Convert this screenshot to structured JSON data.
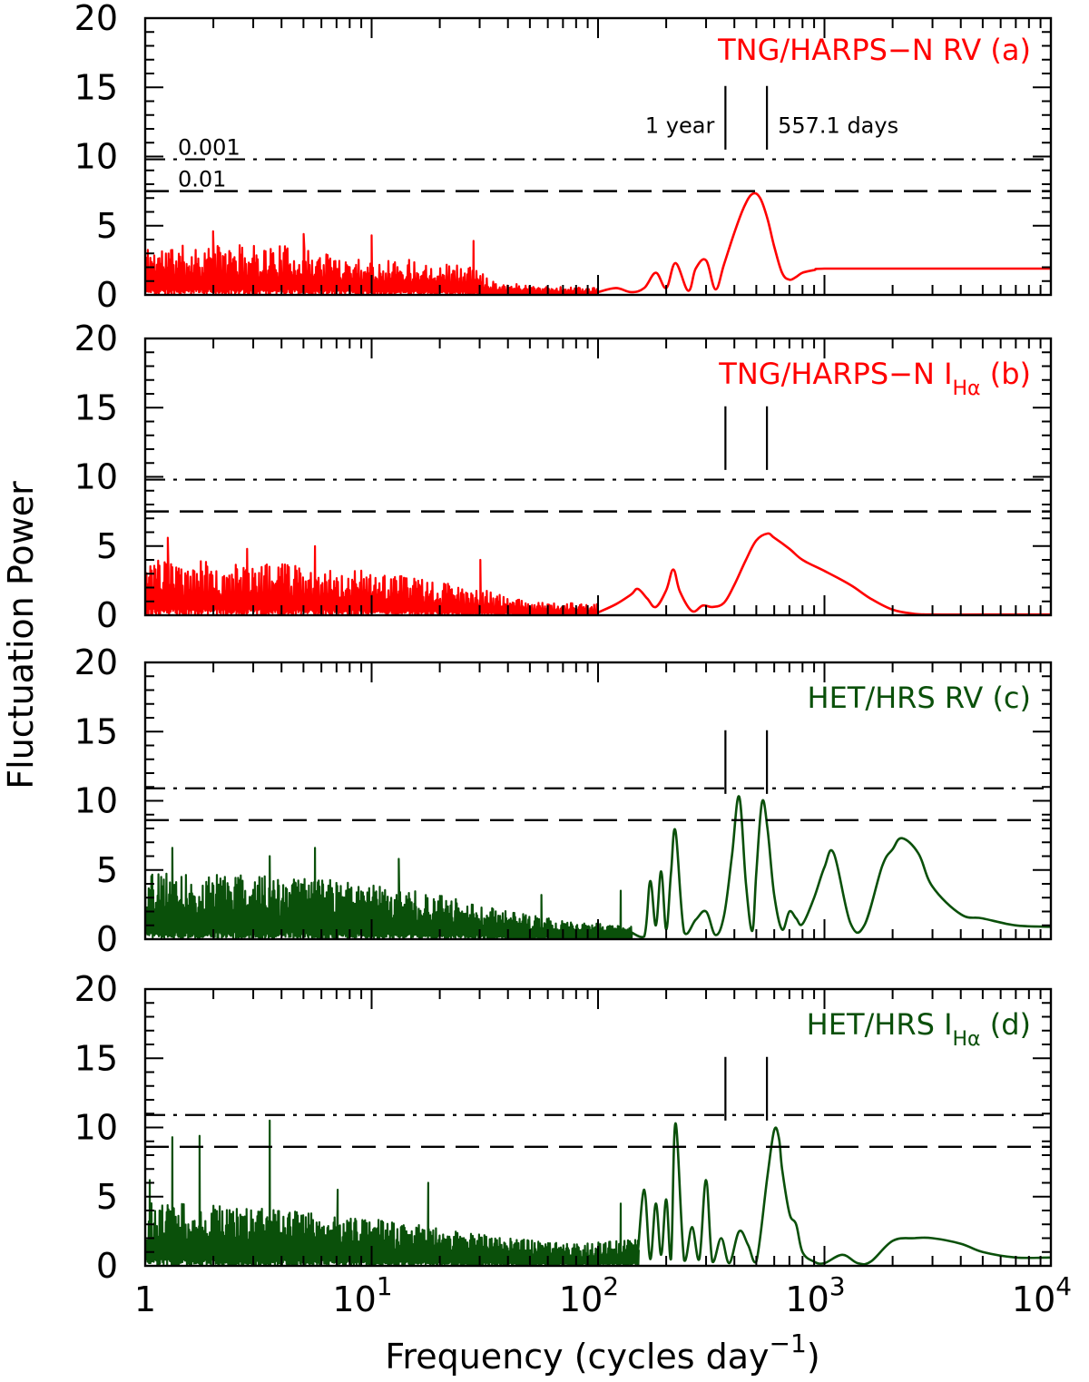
{
  "chart_data": {
    "type": "line",
    "xscale": "log",
    "xlim": [
      1,
      10000
    ],
    "xlabel": "Frequency (cycles day",
    "xlabel_sup": "−1",
    "xlabel_close": ")",
    "ylabel": "Fluctuation Power",
    "x_tick_labels": [
      "1",
      "10",
      "10",
      "10",
      "10"
    ],
    "x_tick_sups": [
      "",
      "1",
      "2",
      "3",
      "4"
    ],
    "x_ticks": [
      1,
      10,
      100,
      1000,
      10000
    ],
    "y_ticks": [
      0,
      5,
      10,
      15,
      20
    ],
    "markers": {
      "one_year": {
        "label": "1 year",
        "x": 365.25
      },
      "period": {
        "label": "557.1 days",
        "x": 557.1
      }
    },
    "fap_labels": {
      "dashdot": "0.001",
      "dashed": "0.01"
    },
    "panels": [
      {
        "id": "a",
        "label": "TNG/HARPS−N RV (a)",
        "label_main": "TNG/HARPS−N RV",
        "label_sub": "",
        "label_tag": "(a)",
        "color": "#ff0000",
        "ylim": [
          0,
          20
        ],
        "fap_001": 9.8,
        "fap_01": 7.5,
        "line_x": [
          100,
          120,
          140,
          160,
          180,
          200,
          220,
          250,
          270,
          300,
          330,
          360,
          400,
          440,
          480,
          520,
          560,
          600,
          650,
          700,
          750,
          800,
          900,
          1000,
          2000,
          5000,
          10000
        ],
        "line_y": [
          0.2,
          0.5,
          0.2,
          0.5,
          1.6,
          0.5,
          2.3,
          0.3,
          1.9,
          2.5,
          0.4,
          2.2,
          4.5,
          6.3,
          7.3,
          7.0,
          5.5,
          3.5,
          1.6,
          1.1,
          1.3,
          1.6,
          1.8,
          1.9,
          1.9,
          1.9,
          1.9
        ],
        "noise": {
          "seed": 11,
          "start": 0.0,
          "end": 2.0,
          "n": 700,
          "env": [
            [
              0.0,
              3.6
            ],
            [
              0.6,
              3.6
            ],
            [
              1.0,
              2.6
            ],
            [
              1.2,
              2.6
            ],
            [
              1.45,
              2.0
            ],
            [
              1.55,
              0.9
            ],
            [
              1.8,
              0.6
            ],
            [
              2.0,
              0.5
            ]
          ],
          "spikes": [
            [
              0.3,
              4.6
            ],
            [
              0.7,
              4.4
            ],
            [
              1.0,
              4.3
            ],
            [
              1.45,
              3.9
            ]
          ]
        }
      },
      {
        "id": "b",
        "label": "TNG/HARPS−N IHα (b)",
        "label_main": "TNG/HARPS−N I",
        "label_sub": "Hα",
        "label_tag": "(b)",
        "color": "#ff0000",
        "ylim": [
          0,
          20
        ],
        "fap_001": 9.8,
        "fap_01": 7.5,
        "line_x": [
          100,
          120,
          140,
          150,
          165,
          180,
          200,
          215,
          230,
          260,
          290,
          320,
          360,
          400,
          450,
          500,
          560,
          600,
          700,
          800,
          1000,
          1300,
          1600,
          2000,
          2500,
          3000,
          5000,
          10000
        ],
        "line_y": [
          0.2,
          0.8,
          1.5,
          1.9,
          1.2,
          0.6,
          1.8,
          3.3,
          1.7,
          0.3,
          0.7,
          0.6,
          0.9,
          2.2,
          4.0,
          5.4,
          5.9,
          5.6,
          4.8,
          4.0,
          3.2,
          2.2,
          1.2,
          0.4,
          0.1,
          0.05,
          0.05,
          0.05
        ],
        "noise": {
          "seed": 23,
          "start": 0.0,
          "end": 2.0,
          "n": 700,
          "env": [
            [
              0.0,
              4.0
            ],
            [
              0.6,
              3.8
            ],
            [
              1.0,
              3.2
            ],
            [
              1.3,
              2.4
            ],
            [
              1.5,
              1.8
            ],
            [
              1.7,
              1.0
            ],
            [
              2.0,
              0.8
            ]
          ],
          "spikes": [
            [
              0.1,
              5.6
            ],
            [
              0.45,
              4.8
            ],
            [
              0.75,
              5.0
            ],
            [
              1.48,
              4.0
            ]
          ]
        }
      },
      {
        "id": "c",
        "label": "HET/HRS RV (c)",
        "label_main": "HET/HRS RV",
        "label_sub": "",
        "label_tag": "(c)",
        "color": "#0a500a",
        "ylim": [
          0,
          20
        ],
        "fap_001": 10.9,
        "fap_01": 8.6,
        "line_x": [
          140,
          160,
          170,
          180,
          190,
          200,
          210,
          220,
          240,
          270,
          300,
          330,
          360,
          390,
          420,
          450,
          480,
          500,
          530,
          560,
          600,
          650,
          700,
          750,
          800,
          900,
          1000,
          1100,
          1300,
          1500,
          1800,
          2000,
          2200,
          2600,
          3000,
          4000,
          5000,
          7000,
          10000
        ],
        "line_y": [
          0.5,
          0.2,
          4.2,
          1.0,
          4.9,
          0.7,
          4.8,
          7.8,
          0.5,
          1.4,
          2.0,
          0.3,
          1.7,
          6.0,
          10.3,
          4.0,
          0.6,
          4.8,
          9.9,
          8.0,
          3.2,
          0.7,
          2.0,
          1.5,
          1.1,
          3.0,
          5.2,
          6.2,
          1.2,
          1.0,
          5.3,
          6.5,
          7.3,
          6.2,
          3.8,
          1.8,
          1.5,
          1.0,
          0.9
        ],
        "noise": {
          "seed": 37,
          "start": 0.0,
          "end": 2.15,
          "n": 1100,
          "env": [
            [
              0.0,
              4.8
            ],
            [
              0.5,
              4.6
            ],
            [
              0.9,
              4.2
            ],
            [
              1.3,
              3.2
            ],
            [
              1.6,
              2.0
            ],
            [
              1.9,
              1.2
            ],
            [
              2.15,
              1.0
            ]
          ],
          "spikes": [
            [
              0.12,
              6.6
            ],
            [
              0.55,
              6.0
            ],
            [
              0.75,
              6.6
            ],
            [
              1.12,
              5.8
            ],
            [
              1.75,
              3.2
            ],
            [
              2.1,
              3.5
            ]
          ]
        }
      },
      {
        "id": "d",
        "label": "HET/HRS IHα (d)",
        "label_main": "HET/HRS I",
        "label_sub": "Hα",
        "label_tag": "(d)",
        "color": "#0a500a",
        "ylim": [
          0,
          20
        ],
        "fap_001": 10.9,
        "fap_01": 8.6,
        "line_x": [
          150,
          160,
          170,
          180,
          190,
          200,
          210,
          220,
          240,
          260,
          280,
          300,
          320,
          350,
          380,
          420,
          460,
          500,
          560,
          600,
          630,
          650,
          700,
          750,
          800,
          900,
          1000,
          1200,
          1400,
          1600,
          2000,
          2500,
          3000,
          4000,
          5000,
          7000,
          10000
        ],
        "line_y": [
          1.0,
          5.5,
          0.5,
          4.5,
          0.8,
          4.8,
          0.5,
          10.3,
          0.4,
          2.8,
          0.5,
          6.2,
          0.3,
          2.0,
          0.2,
          2.5,
          1.5,
          0.3,
          6.5,
          9.8,
          9.2,
          7.0,
          3.8,
          3.0,
          1.0,
          0.3,
          0.2,
          0.8,
          0.2,
          0.3,
          1.8,
          2.0,
          2.0,
          1.6,
          1.0,
          0.6,
          0.6
        ],
        "noise": {
          "seed": 53,
          "start": 0.0,
          "end": 2.18,
          "n": 1100,
          "env": [
            [
              0.0,
              4.6
            ],
            [
              0.5,
              4.2
            ],
            [
              0.9,
              3.6
            ],
            [
              1.3,
              2.8
            ],
            [
              1.6,
              2.0
            ],
            [
              1.9,
              1.6
            ],
            [
              2.18,
              2.0
            ]
          ],
          "spikes": [
            [
              0.02,
              6.2
            ],
            [
              0.12,
              9.3
            ],
            [
              0.24,
              9.4
            ],
            [
              0.55,
              10.5
            ],
            [
              0.85,
              5.5
            ],
            [
              1.25,
              6.0
            ],
            [
              2.1,
              4.5
            ]
          ]
        }
      }
    ]
  }
}
